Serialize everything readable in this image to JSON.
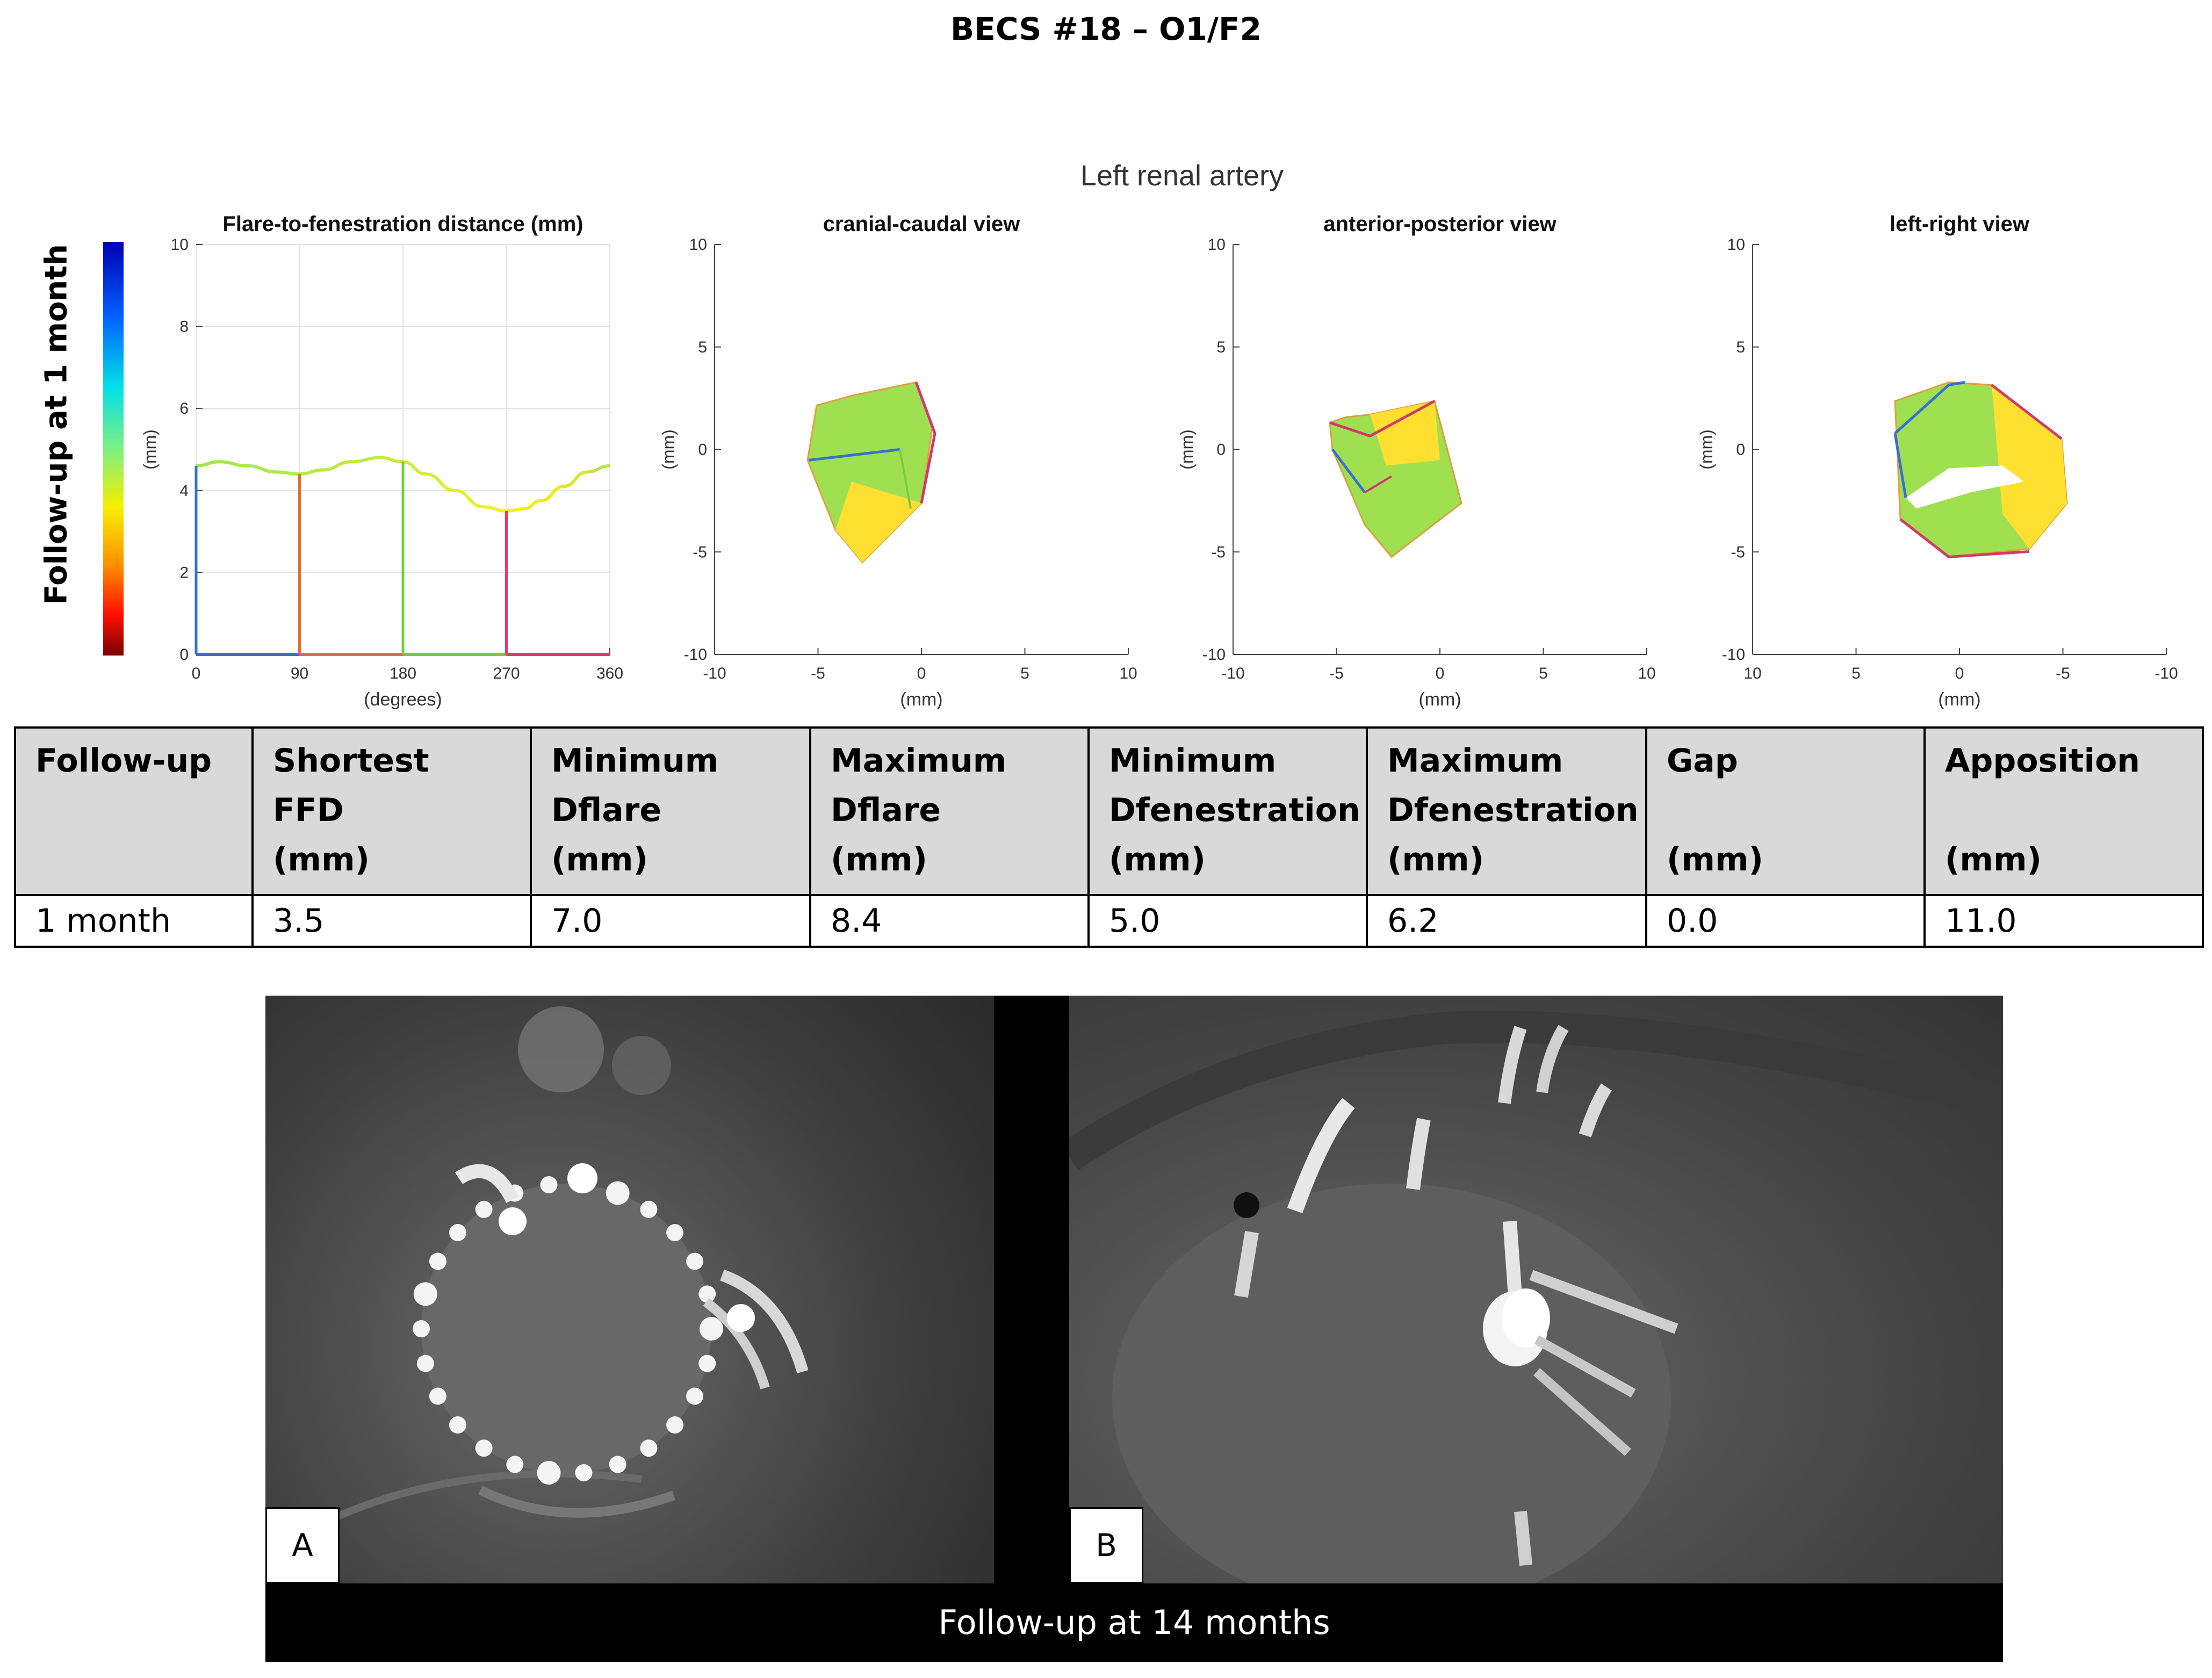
{
  "title": "BECS #18 – O1/F2",
  "colorbar_label": "Follow-up at 1 month",
  "figure_supertitle": "Left renal artery",
  "chart_data": [
    {
      "type": "line",
      "title": "Flare-to-fenestration distance (mm)",
      "xlabel": "(degrees)",
      "ylabel": "(mm)",
      "xlim": [
        0,
        360
      ],
      "ylim": [
        0,
        10
      ],
      "xticks": [
        0,
        90,
        180,
        270,
        360
      ],
      "yticks": [
        0,
        2,
        4,
        6,
        8,
        10
      ],
      "grid": true,
      "series": [
        {
          "x": [
            0,
            20,
            45,
            70,
            90,
            110,
            135,
            160,
            180,
            200,
            225,
            250,
            270,
            285,
            300,
            320,
            340,
            360
          ],
          "y": [
            4.6,
            4.7,
            4.6,
            4.45,
            4.4,
            4.5,
            4.7,
            4.8,
            4.7,
            4.4,
            4.0,
            3.6,
            3.5,
            3.55,
            3.75,
            4.1,
            4.45,
            4.6
          ]
        }
      ],
      "markers": [
        {
          "x": 0,
          "y": 4.6,
          "color": "#3a6fd0"
        },
        {
          "x": 90,
          "y": 4.4,
          "color": "#e0703a"
        },
        {
          "x": 180,
          "y": 4.7,
          "color": "#7acc3a"
        },
        {
          "x": 270,
          "y": 3.5,
          "color": "#e03a6f"
        }
      ]
    },
    {
      "type": "surface",
      "title": "cranial-caudal view",
      "xlabel": "(mm)",
      "ylabel": "(mm)",
      "xlim": [
        -10,
        10
      ],
      "ylim": [
        -10,
        10
      ],
      "xticks": [
        -10,
        -5,
        0,
        5,
        10
      ],
      "yticks": [
        -10,
        -5,
        0,
        5,
        10
      ]
    },
    {
      "type": "surface",
      "title": "anterior-posterior view",
      "xlabel": "(mm)",
      "ylabel": "(mm)",
      "xlim": [
        -10,
        10
      ],
      "ylim": [
        -10,
        10
      ],
      "xticks": [
        -10,
        -5,
        0,
        5,
        10
      ],
      "yticks": [
        -10,
        -5,
        0,
        5,
        10
      ]
    },
    {
      "type": "surface",
      "title": "left-right view",
      "xlabel": "(mm)",
      "ylabel": "(mm)",
      "xlim": [
        10,
        -10
      ],
      "ylim": [
        -10,
        10
      ],
      "xticks": [
        10,
        5,
        0,
        -5,
        -10
      ],
      "yticks": [
        -10,
        -5,
        0,
        5,
        10
      ]
    }
  ],
  "table": {
    "headers": [
      [
        "Follow-up"
      ],
      [
        "Shortest",
        "FFD",
        "(mm)"
      ],
      [
        "Minimum",
        "Dflare",
        "(mm)"
      ],
      [
        "Maximum",
        "Dflare",
        "(mm)"
      ],
      [
        "Minimum",
        "Dfenestration",
        "(mm)"
      ],
      [
        "Maximum",
        "Dfenestration",
        "(mm)"
      ],
      [
        "Gap",
        "",
        "(mm)"
      ],
      [
        "Apposition",
        "",
        "(mm)"
      ]
    ],
    "rows": [
      [
        "1 month",
        "3.5",
        "7.0",
        "8.4",
        "5.0",
        "6.2",
        "0.0",
        "11.0"
      ]
    ]
  },
  "panels": {
    "a_label": "A",
    "b_label": "B",
    "caption": "Follow-up at 14 months"
  }
}
